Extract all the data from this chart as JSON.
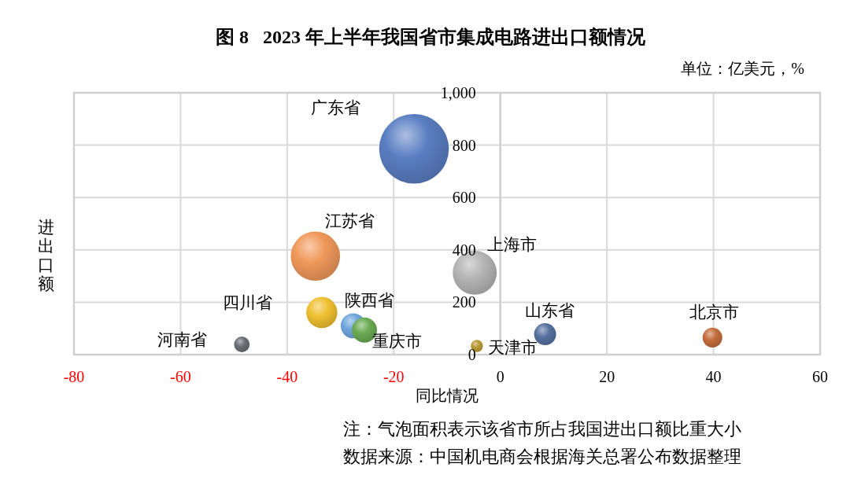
{
  "chart_data": {
    "type": "bubble",
    "title": "图 8   2023 年上半年我国省市集成电路进出口额情况",
    "subtitle": "单位：亿美元，%",
    "xlabel": "同比情况",
    "ylabel": "进出口额",
    "annotations": [
      "注：气泡面积表示该省市所占我国进出口额比重大小",
      "数据来源：中国机电商会根据海关总署公布数据整理"
    ],
    "xlim": [
      -80,
      60
    ],
    "xticks": [
      -80,
      -60,
      -40,
      -20,
      0,
      20,
      40,
      60
    ],
    "ylim": [
      0,
      1000
    ],
    "yticks": [
      0,
      200,
      400,
      600,
      800,
      {
        "value": 1000,
        "label": "1,000"
      }
    ],
    "grid": true,
    "legend": false,
    "series": [
      {
        "name": "广东省",
        "color": "#5a7ec2",
        "x": [
          -16.2
        ],
        "values": [
          786
        ],
        "sizes": [
          1
        ]
      },
      {
        "name": "江苏省",
        "color": "#f0985a",
        "x": [
          -34.7
        ],
        "values": [
          376
        ],
        "sizes": [
          0.5
        ]
      },
      {
        "name": "上海市",
        "color": "#b5b5b5",
        "x": [
          -4.8
        ],
        "values": [
          313
        ],
        "sizes": [
          0.4
        ]
      },
      {
        "name": "四川省",
        "color": "#efc032",
        "x": [
          -33.5
        ],
        "values": [
          161
        ],
        "sizes": [
          0.2
        ]
      },
      {
        "name": "陕西省",
        "color": "#6ea6de",
        "x": [
          -27.6
        ],
        "values": [
          110
        ],
        "sizes": [
          0.13
        ]
      },
      {
        "name": "重庆市",
        "color": "#6aaa52",
        "x": [
          -25.5
        ],
        "values": [
          94
        ],
        "sizes": [
          0.13
        ]
      },
      {
        "name": "山东省",
        "color": "#56709f",
        "x": [
          8.4
        ],
        "values": [
          78
        ],
        "sizes": [
          0.1
        ]
      },
      {
        "name": "北京市",
        "color": "#c46d3c",
        "x": [
          39.8
        ],
        "values": [
          65
        ],
        "sizes": [
          0.08
        ]
      },
      {
        "name": "河南省",
        "color": "#6a6d74",
        "x": [
          -48.5
        ],
        "values": [
          39
        ],
        "sizes": [
          0.05
        ]
      },
      {
        "name": "天津市",
        "color": "#b99b35",
        "x": [
          -4.4
        ],
        "values": [
          33
        ],
        "sizes": [
          0.03
        ]
      }
    ]
  }
}
